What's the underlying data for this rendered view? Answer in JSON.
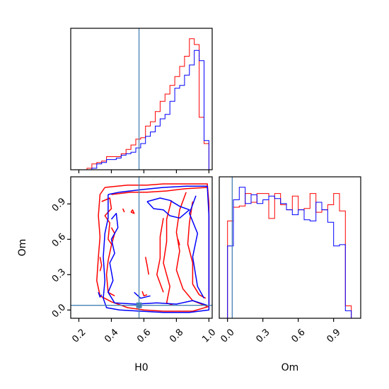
{
  "chart_data": {
    "type": "corner",
    "parameters": [
      "H0",
      "Om"
    ],
    "truth": {
      "H0": 0.57,
      "Om": 0.04
    },
    "truth_color": "#4682b4",
    "series": [
      {
        "color": "#ff0000"
      },
      {
        "color": "#0000ff"
      }
    ],
    "panels": [
      {
        "id": "hist_H0",
        "type": "step-histogram",
        "parameter": "H0",
        "xlim": [
          0.15,
          1.02
        ],
        "bin_edges": [
          0.25,
          0.28,
          0.31,
          0.34,
          0.37,
          0.4,
          0.43,
          0.46,
          0.49,
          0.52,
          0.55,
          0.58,
          0.61,
          0.64,
          0.67,
          0.7,
          0.73,
          0.76,
          0.79,
          0.82,
          0.85,
          0.88,
          0.91,
          0.94,
          0.97,
          1.0
        ],
        "series_values": [
          [
            0.01,
            0.04,
            0.05,
            0.06,
            0.09,
            0.09,
            0.09,
            0.11,
            0.14,
            0.17,
            0.21,
            0.22,
            0.3,
            0.33,
            0.4,
            0.47,
            0.52,
            0.58,
            0.64,
            0.71,
            0.78,
            0.9,
            0.86,
            0.36,
            0.18
          ],
          [
            0.0,
            0.01,
            0.04,
            0.05,
            0.07,
            0.07,
            0.08,
            0.1,
            0.11,
            0.12,
            0.15,
            0.18,
            0.23,
            0.26,
            0.3,
            0.35,
            0.38,
            0.47,
            0.56,
            0.58,
            0.65,
            0.72,
            0.82,
            0.75,
            0.2
          ]
        ]
      },
      {
        "id": "hist_Om",
        "type": "step-histogram",
        "parameter": "Om",
        "xlim": [
          -0.07,
          1.13
        ],
        "bin_edges": [
          -0.05,
          0.0,
          0.05,
          0.1,
          0.15,
          0.2,
          0.25,
          0.3,
          0.35,
          0.4,
          0.45,
          0.5,
          0.55,
          0.6,
          0.65,
          0.7,
          0.75,
          0.8,
          0.85,
          0.9,
          0.95,
          1.0,
          1.05
        ],
        "series_values": [
          [
            0.0,
            0.78,
            0.89,
            0.9,
            1.0,
            0.93,
            1.0,
            1.0,
            0.8,
            1.0,
            0.91,
            0.87,
            0.98,
            0.87,
            0.88,
            1.0,
            0.85,
            0.87,
            0.91,
            1.0,
            0.86,
            0.1
          ],
          [
            0.0,
            0.58,
            0.95,
            1.05,
            0.92,
            0.99,
            0.92,
            0.95,
            0.98,
            0.96,
            0.92,
            0.87,
            0.83,
            0.87,
            0.79,
            0.78,
            0.93,
            0.87,
            0.77,
            0.58,
            0.59,
            0.06
          ]
        ],
        "xticks": [
          0.0,
          0.3,
          0.6,
          0.9
        ],
        "xticklabels": [
          "0.0",
          "0.3",
          "0.6",
          "0.9"
        ],
        "xlabel": "Om"
      },
      {
        "id": "contour_H0_Om",
        "type": "contour",
        "x": "H0",
        "y": "Om",
        "xlim": [
          0.15,
          1.02
        ],
        "ylim": [
          -0.07,
          1.13
        ],
        "xticks": [
          0.2,
          0.4,
          0.6,
          0.8,
          1.0
        ],
        "xticklabels": [
          "0.2",
          "0.4",
          "0.6",
          "0.8",
          "1.0"
        ],
        "yticks": [
          0.0,
          0.3,
          0.6,
          0.9
        ],
        "yticklabels": [
          "0.0",
          "0.3",
          "0.6",
          "0.9"
        ],
        "xlabel": "H0",
        "ylabel": "Om",
        "series_contours": [
          [
            [
              [
                0.36,
                1.04
              ],
              [
                0.5,
                1.06
              ],
              [
                0.62,
                1.06
              ],
              [
                0.72,
                1.07
              ],
              [
                0.85,
                1.07
              ],
              [
                0.99,
                1.07
              ],
              [
                1.0,
                0.9
              ],
              [
                1.0,
                0.6
              ],
              [
                1.0,
                0.3
              ],
              [
                1.0,
                0.03
              ],
              [
                0.9,
                -0.01
              ],
              [
                0.72,
                -0.01
              ],
              [
                0.6,
                0.0
              ],
              [
                0.5,
                0.02
              ],
              [
                0.4,
                0.07
              ],
              [
                0.33,
                0.12
              ],
              [
                0.31,
                0.25
              ],
              [
                0.32,
                0.45
              ],
              [
                0.33,
                0.62
              ],
              [
                0.32,
                0.8
              ],
              [
                0.33,
                0.98
              ],
              [
                0.36,
                1.04
              ]
            ],
            [
              [
                0.4,
                0.98
              ],
              [
                0.52,
                1.0
              ],
              [
                0.62,
                1.0
              ],
              [
                0.74,
                1.01
              ],
              [
                0.86,
                1.03
              ],
              [
                0.99,
                1.04
              ]
            ],
            [
              [
                0.86,
                1.0
              ],
              [
                0.82,
                0.85
              ],
              [
                0.8,
                0.66
              ],
              [
                0.82,
                0.5
              ],
              [
                0.8,
                0.34
              ],
              [
                0.84,
                0.18
              ],
              [
                0.9,
                0.08
              ],
              [
                0.99,
                0.03
              ]
            ],
            [
              [
                0.9,
                0.92
              ],
              [
                0.88,
                0.74
              ],
              [
                0.87,
                0.56
              ],
              [
                0.9,
                0.4
              ],
              [
                0.9,
                0.22
              ],
              [
                0.94,
                0.13
              ],
              [
                0.98,
                0.1
              ]
            ],
            [
              [
                0.77,
                0.93
              ],
              [
                0.74,
                0.77
              ],
              [
                0.74,
                0.58
              ],
              [
                0.72,
                0.4
              ],
              [
                0.76,
                0.2
              ],
              [
                0.74,
                0.06
              ],
              [
                0.78,
                0.04
              ]
            ],
            [
              [
                0.72,
                0.78
              ],
              [
                0.7,
                0.62
              ],
              [
                0.7,
                0.44
              ],
              [
                0.68,
                0.3
              ],
              [
                0.72,
                0.15
              ]
            ],
            [
              [
                0.34,
                0.92
              ],
              [
                0.39,
                0.95
              ],
              [
                0.4,
                0.86
              ],
              [
                0.36,
                0.8
              ],
              [
                0.39,
                0.74
              ],
              [
                0.38,
                0.6
              ],
              [
                0.4,
                0.56
              ]
            ],
            [
              [
                0.4,
                0.7
              ],
              [
                0.42,
                0.65
              ],
              [
                0.4,
                0.55
              ],
              [
                0.38,
                0.42
              ],
              [
                0.37,
                0.3
              ],
              [
                0.38,
                0.15
              ],
              [
                0.42,
                0.12
              ]
            ],
            [
              [
                0.33,
                0.45
              ],
              [
                0.34,
                0.38
              ],
              [
                0.33,
                0.33
              ]
            ],
            [
              [
                0.47,
                0.86
              ],
              [
                0.48,
                0.83
              ]
            ],
            [
              [
                0.52,
                0.83
              ],
              [
                0.54,
                0.82
              ],
              [
                0.53,
                0.85
              ],
              [
                0.52,
                0.83
              ]
            ],
            [
              [
                0.61,
                0.45
              ],
              [
                0.62,
                0.38
              ],
              [
                0.63,
                0.3
              ]
            ],
            [
              [
                0.59,
                0.16
              ],
              [
                0.6,
                0.12
              ],
              [
                0.62,
                0.13
              ]
            ],
            [
              [
                0.81,
                0.6
              ],
              [
                0.82,
                0.55
              ]
            ]
          ],
          [
            [
              [
                0.38,
                0.98
              ],
              [
                0.45,
                1.0
              ],
              [
                0.58,
                1.02
              ],
              [
                0.72,
                1.04
              ],
              [
                0.86,
                1.05
              ],
              [
                0.99,
                1.05
              ],
              [
                1.0,
                0.8
              ],
              [
                1.0,
                0.5
              ],
              [
                1.0,
                0.2
              ],
              [
                1.0,
                0.0
              ],
              [
                0.88,
                -0.02
              ],
              [
                0.72,
                -0.02
              ],
              [
                0.58,
                -0.01
              ],
              [
                0.45,
                0.0
              ],
              [
                0.37,
                0.02
              ],
              [
                0.35,
                0.1
              ],
              [
                0.36,
                0.25
              ],
              [
                0.35,
                0.45
              ],
              [
                0.36,
                0.65
              ],
              [
                0.38,
                0.78
              ],
              [
                0.38,
                0.98
              ]
            ],
            [
              [
                0.4,
                0.77
              ],
              [
                0.43,
                0.82
              ],
              [
                0.44,
                0.7
              ],
              [
                0.4,
                0.6
              ],
              [
                0.42,
                0.48
              ],
              [
                0.39,
                0.4
              ],
              [
                0.41,
                0.25
              ],
              [
                0.38,
                0.15
              ],
              [
                0.42,
                0.06
              ],
              [
                0.55,
                0.05
              ],
              [
                0.68,
                0.06
              ],
              [
                0.8,
                0.05
              ],
              [
                0.9,
                0.08
              ],
              [
                0.99,
                0.04
              ]
            ],
            [
              [
                0.92,
                0.97
              ],
              [
                0.88,
                0.82
              ],
              [
                0.93,
                0.65
              ],
              [
                0.9,
                0.45
              ],
              [
                0.93,
                0.2
              ],
              [
                0.97,
                0.1
              ]
            ],
            [
              [
                0.62,
                0.92
              ],
              [
                0.7,
                0.95
              ],
              [
                0.76,
                0.93
              ],
              [
                0.82,
                0.88
              ],
              [
                0.88,
                0.85
              ],
              [
                0.82,
                0.78
              ],
              [
                0.76,
                0.8
              ],
              [
                0.72,
                0.85
              ],
              [
                0.66,
                0.86
              ],
              [
                0.62,
                0.92
              ]
            ],
            [
              [
                0.54,
                0.15
              ],
              [
                0.58,
                0.1
              ],
              [
                0.64,
                0.12
              ]
            ],
            [
              [
                0.32,
                0.15
              ],
              [
                0.33,
                0.11
              ],
              [
                0.34,
                0.13
              ]
            ]
          ]
        ]
      }
    ]
  }
}
